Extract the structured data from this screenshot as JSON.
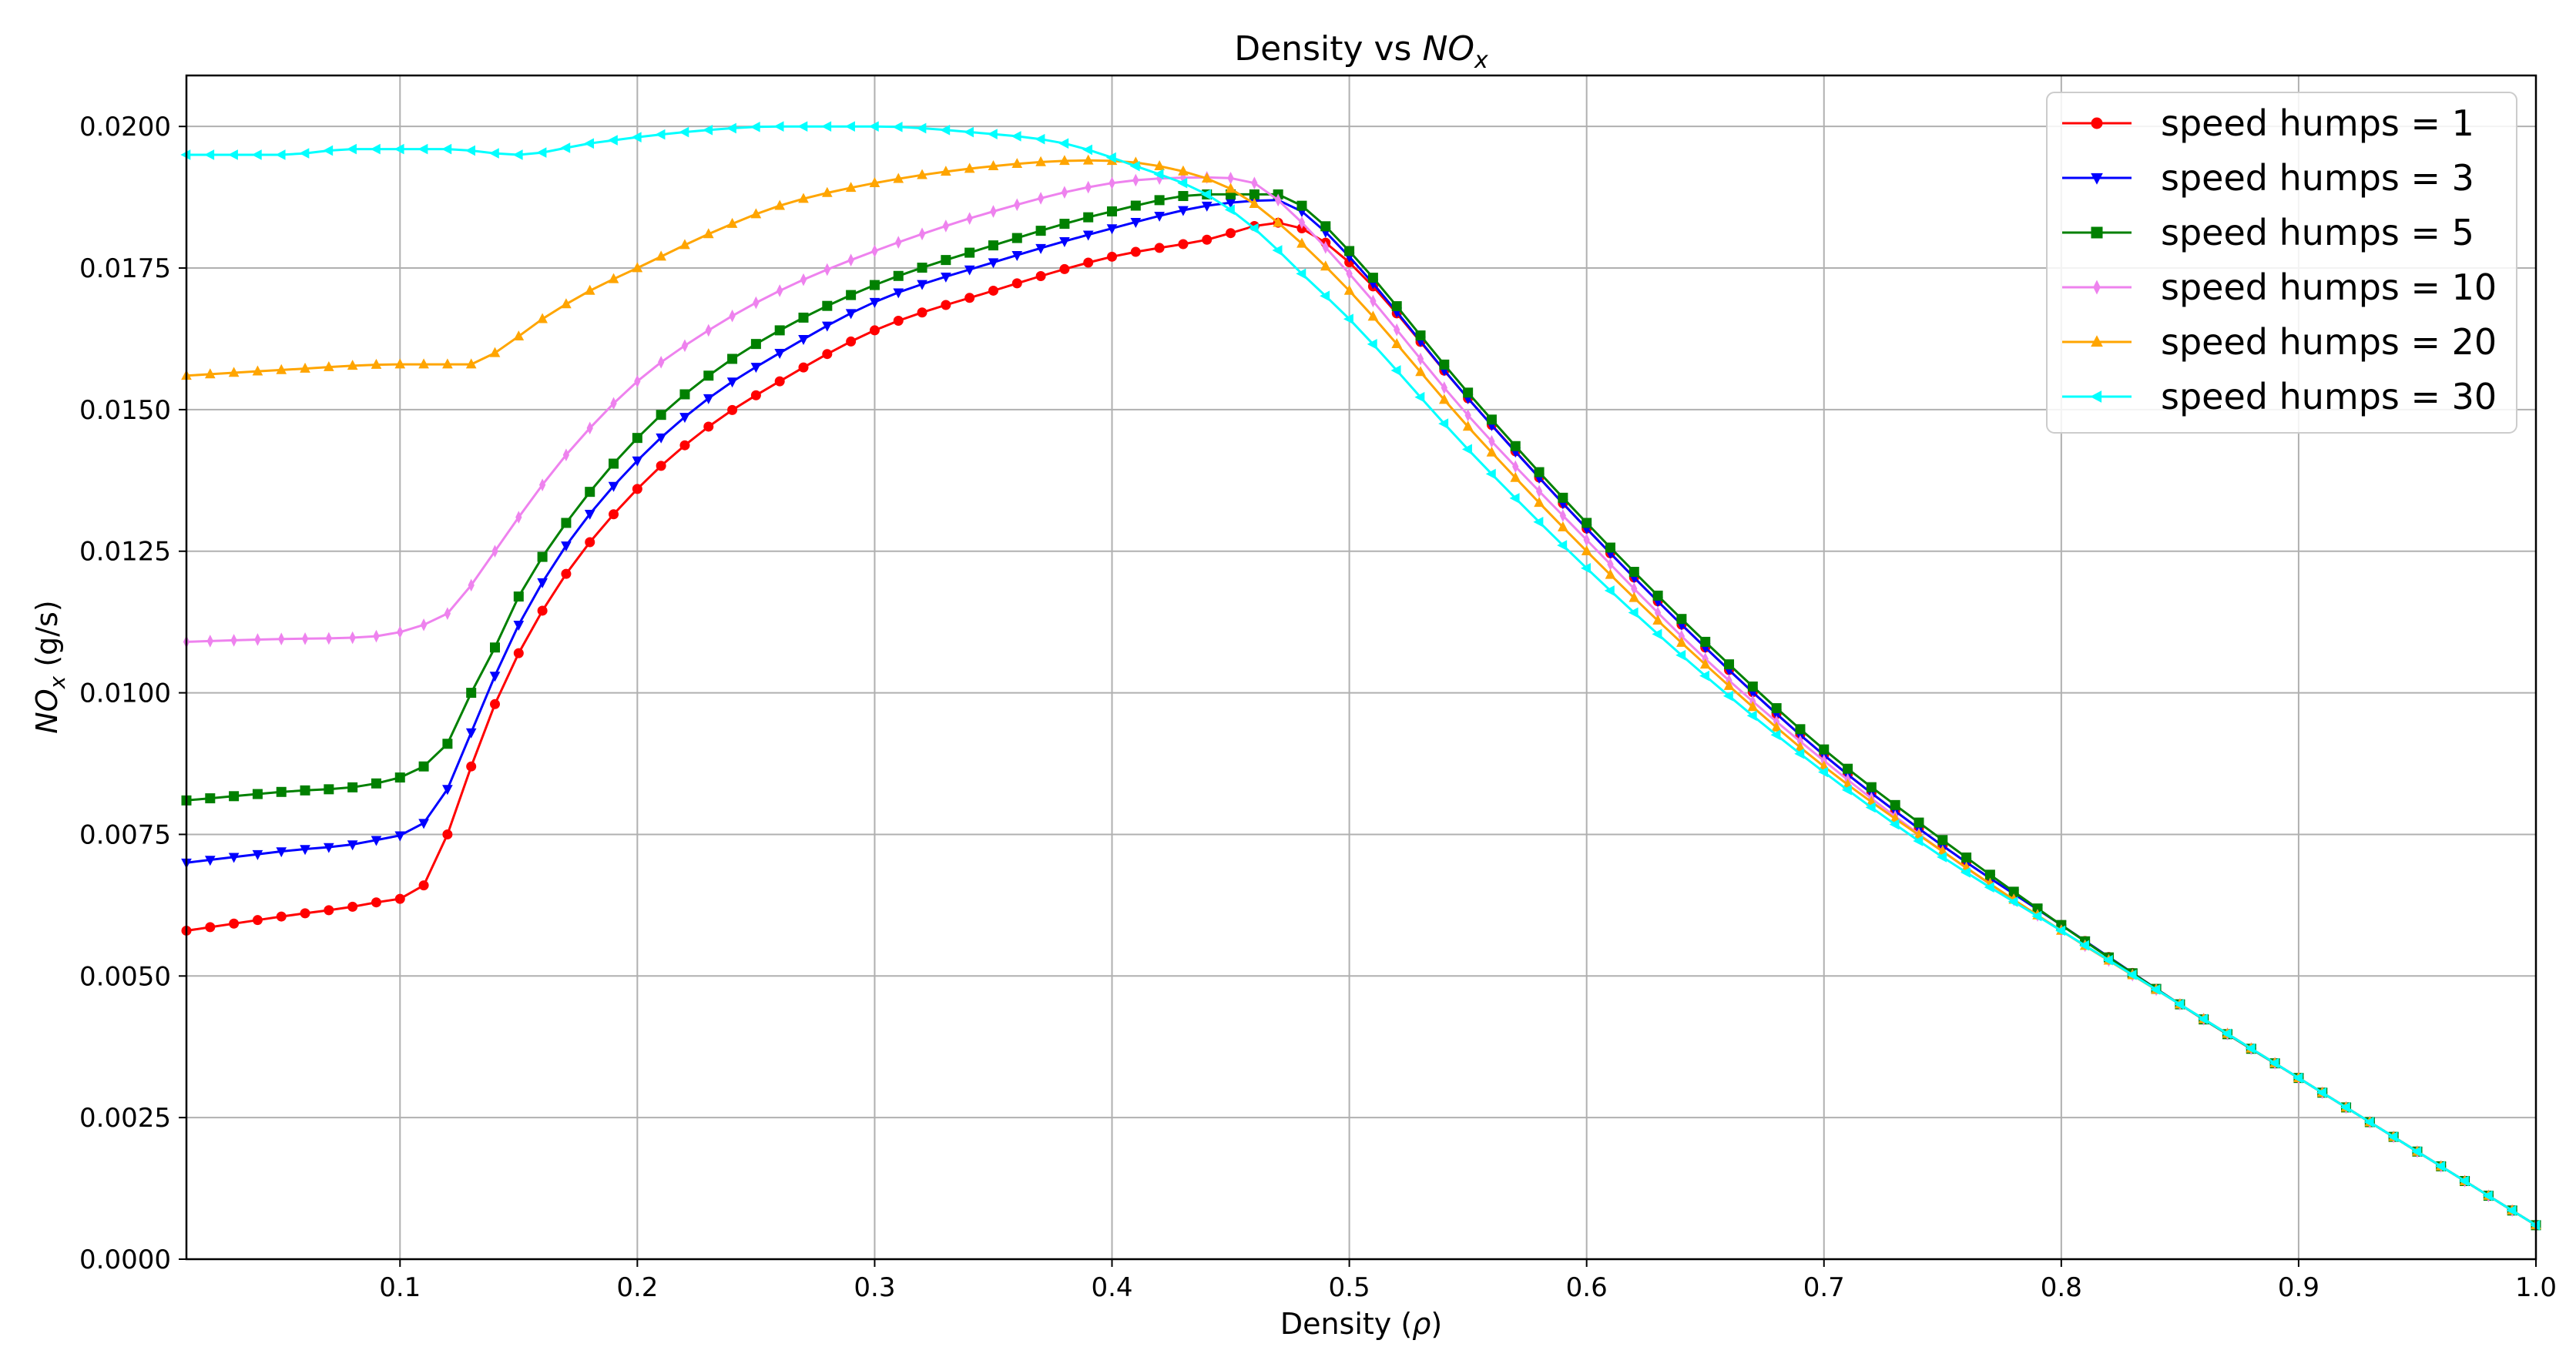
{
  "chart_data": {
    "type": "line",
    "title": "Density vs NOx",
    "title_parts": [
      "Density vs ",
      "NO",
      "x"
    ],
    "xlabel": "Density (ρ)",
    "xlabel_parts": [
      "Density (",
      "ρ",
      ")"
    ],
    "ylabel": "NOx (g/s)",
    "ylabel_parts": [
      "NO",
      "x",
      " (g/s)"
    ],
    "xlim": [
      0.01,
      1.0
    ],
    "ylim": [
      0.0,
      0.0209
    ],
    "x_ticks": [
      0.1,
      0.2,
      0.3,
      0.4,
      0.5,
      0.6,
      0.7,
      0.8,
      0.9,
      1.0
    ],
    "x_tick_labels": [
      "0.1",
      "0.2",
      "0.3",
      "0.4",
      "0.5",
      "0.6",
      "0.7",
      "0.8",
      "0.9",
      "1.0"
    ],
    "y_ticks": [
      0,
      0.0025,
      0.005,
      0.0075,
      0.01,
      0.0125,
      0.015,
      0.0175,
      0.02
    ],
    "y_tick_labels": [
      "0.0000",
      "0.0025",
      "0.0050",
      "0.0075",
      "0.0100",
      "0.0125",
      "0.0150",
      "0.0175",
      "0.0200"
    ],
    "grid": true,
    "legend_position": "top-right",
    "x": {
      "start": 0.01,
      "end": 1.0,
      "step": 0.01
    },
    "series": [
      {
        "name": "speed humps = 1",
        "color": "#ff0000",
        "marker": "circle",
        "keypoints": [
          [
            0.01,
            0.0058
          ],
          [
            0.05,
            0.00605
          ],
          [
            0.09,
            0.0063
          ],
          [
            0.11,
            0.0066
          ],
          [
            0.12,
            0.0075
          ],
          [
            0.13,
            0.0087
          ],
          [
            0.14,
            0.0098
          ],
          [
            0.15,
            0.0107
          ],
          [
            0.17,
            0.0121
          ],
          [
            0.2,
            0.0136
          ],
          [
            0.23,
            0.0147
          ],
          [
            0.26,
            0.0155
          ],
          [
            0.3,
            0.0164
          ],
          [
            0.35,
            0.0171
          ],
          [
            0.4,
            0.0177
          ],
          [
            0.44,
            0.018
          ],
          [
            0.47,
            0.0183
          ],
          [
            0.48,
            0.0182
          ],
          [
            0.5,
            0.0176
          ],
          [
            0.55,
            0.0152
          ],
          [
            0.6,
            0.0129
          ],
          [
            0.65,
            0.0108
          ],
          [
            0.7,
            0.0089
          ],
          [
            0.75,
            0.0073
          ],
          [
            0.8,
            0.0059
          ],
          [
            0.85,
            0.0045
          ],
          [
            0.9,
            0.0032
          ],
          [
            0.95,
            0.0019
          ],
          [
            1.0,
            0.0006
          ]
        ]
      },
      {
        "name": "speed humps = 3",
        "color": "#0000ff",
        "marker": "triangle-down",
        "keypoints": [
          [
            0.01,
            0.007
          ],
          [
            0.05,
            0.0072
          ],
          [
            0.09,
            0.0074
          ],
          [
            0.11,
            0.0077
          ],
          [
            0.12,
            0.0083
          ],
          [
            0.13,
            0.0093
          ],
          [
            0.14,
            0.0103
          ],
          [
            0.15,
            0.0112
          ],
          [
            0.17,
            0.0126
          ],
          [
            0.2,
            0.0141
          ],
          [
            0.23,
            0.0152
          ],
          [
            0.26,
            0.016
          ],
          [
            0.3,
            0.0169
          ],
          [
            0.35,
            0.0176
          ],
          [
            0.4,
            0.0182
          ],
          [
            0.44,
            0.0186
          ],
          [
            0.47,
            0.0187
          ],
          [
            0.48,
            0.0185
          ],
          [
            0.5,
            0.0177
          ],
          [
            0.55,
            0.0152
          ],
          [
            0.6,
            0.0129
          ],
          [
            0.65,
            0.0108
          ],
          [
            0.7,
            0.0089
          ],
          [
            0.75,
            0.0073
          ],
          [
            0.8,
            0.0059
          ],
          [
            0.85,
            0.0045
          ],
          [
            0.9,
            0.0032
          ],
          [
            0.95,
            0.0019
          ],
          [
            1.0,
            0.0006
          ]
        ]
      },
      {
        "name": "speed humps = 5",
        "color": "#008000",
        "marker": "square",
        "keypoints": [
          [
            0.01,
            0.0081
          ],
          [
            0.05,
            0.00825
          ],
          [
            0.09,
            0.0084
          ],
          [
            0.11,
            0.0087
          ],
          [
            0.12,
            0.0091
          ],
          [
            0.13,
            0.01
          ],
          [
            0.14,
            0.0108
          ],
          [
            0.15,
            0.0117
          ],
          [
            0.17,
            0.013
          ],
          [
            0.2,
            0.0145
          ],
          [
            0.23,
            0.0156
          ],
          [
            0.26,
            0.0164
          ],
          [
            0.3,
            0.0172
          ],
          [
            0.35,
            0.0179
          ],
          [
            0.4,
            0.0185
          ],
          [
            0.44,
            0.0188
          ],
          [
            0.47,
            0.0188
          ],
          [
            0.48,
            0.0186
          ],
          [
            0.5,
            0.0178
          ],
          [
            0.55,
            0.0153
          ],
          [
            0.6,
            0.013
          ],
          [
            0.65,
            0.0109
          ],
          [
            0.7,
            0.009
          ],
          [
            0.75,
            0.0074
          ],
          [
            0.8,
            0.0059
          ],
          [
            0.85,
            0.0045
          ],
          [
            0.9,
            0.0032
          ],
          [
            0.95,
            0.0019
          ],
          [
            1.0,
            0.0006
          ]
        ]
      },
      {
        "name": "speed humps = 10",
        "color": "#ee82ee",
        "marker": "thin-diamond",
        "keypoints": [
          [
            0.01,
            0.0109
          ],
          [
            0.05,
            0.01095
          ],
          [
            0.09,
            0.011
          ],
          [
            0.11,
            0.0112
          ],
          [
            0.12,
            0.0114
          ],
          [
            0.13,
            0.0119
          ],
          [
            0.14,
            0.0125
          ],
          [
            0.15,
            0.0131
          ],
          [
            0.17,
            0.0142
          ],
          [
            0.2,
            0.0155
          ],
          [
            0.23,
            0.0164
          ],
          [
            0.26,
            0.0171
          ],
          [
            0.3,
            0.0178
          ],
          [
            0.35,
            0.0185
          ],
          [
            0.4,
            0.019
          ],
          [
            0.44,
            0.0191
          ],
          [
            0.46,
            0.019
          ],
          [
            0.47,
            0.0187
          ],
          [
            0.5,
            0.0174
          ],
          [
            0.55,
            0.0149
          ],
          [
            0.6,
            0.0127
          ],
          [
            0.65,
            0.0106
          ],
          [
            0.7,
            0.0088
          ],
          [
            0.75,
            0.0072
          ],
          [
            0.8,
            0.0058
          ],
          [
            0.85,
            0.0045
          ],
          [
            0.9,
            0.0032
          ],
          [
            0.95,
            0.0019
          ],
          [
            1.0,
            0.0006
          ]
        ]
      },
      {
        "name": "speed humps = 20",
        "color": "#ffa500",
        "marker": "triangle-up",
        "keypoints": [
          [
            0.01,
            0.0156
          ],
          [
            0.05,
            0.0157
          ],
          [
            0.1,
            0.0158
          ],
          [
            0.13,
            0.0158
          ],
          [
            0.14,
            0.016
          ],
          [
            0.16,
            0.0166
          ],
          [
            0.18,
            0.0171
          ],
          [
            0.2,
            0.0175
          ],
          [
            0.23,
            0.0181
          ],
          [
            0.26,
            0.0186
          ],
          [
            0.3,
            0.019
          ],
          [
            0.35,
            0.0193
          ],
          [
            0.39,
            0.0194
          ],
          [
            0.42,
            0.0193
          ],
          [
            0.45,
            0.0189
          ],
          [
            0.47,
            0.0183
          ],
          [
            0.5,
            0.0171
          ],
          [
            0.55,
            0.0147
          ],
          [
            0.6,
            0.0125
          ],
          [
            0.65,
            0.0105
          ],
          [
            0.7,
            0.0087
          ],
          [
            0.75,
            0.0072
          ],
          [
            0.8,
            0.0058
          ],
          [
            0.85,
            0.0045
          ],
          [
            0.9,
            0.0032
          ],
          [
            0.95,
            0.0019
          ],
          [
            1.0,
            0.0006
          ]
        ]
      },
      {
        "name": "speed humps = 30",
        "color": "#00ffff",
        "marker": "triangle-left",
        "keypoints": [
          [
            0.01,
            0.0195
          ],
          [
            0.05,
            0.0195
          ],
          [
            0.08,
            0.0196
          ],
          [
            0.1,
            0.0196
          ],
          [
            0.12,
            0.0196
          ],
          [
            0.15,
            0.0195
          ],
          [
            0.18,
            0.0197
          ],
          [
            0.22,
            0.0199
          ],
          [
            0.26,
            0.02
          ],
          [
            0.3,
            0.02
          ],
          [
            0.34,
            0.0199
          ],
          [
            0.38,
            0.0197
          ],
          [
            0.41,
            0.0193
          ],
          [
            0.44,
            0.0188
          ],
          [
            0.46,
            0.0182
          ],
          [
            0.48,
            0.0174
          ],
          [
            0.5,
            0.0166
          ],
          [
            0.55,
            0.0143
          ],
          [
            0.6,
            0.0122
          ],
          [
            0.65,
            0.0103
          ],
          [
            0.7,
            0.0086
          ],
          [
            0.75,
            0.0071
          ],
          [
            0.8,
            0.0058
          ],
          [
            0.85,
            0.0045
          ],
          [
            0.9,
            0.0032
          ],
          [
            0.95,
            0.0019
          ],
          [
            1.0,
            0.0006
          ]
        ]
      }
    ]
  }
}
